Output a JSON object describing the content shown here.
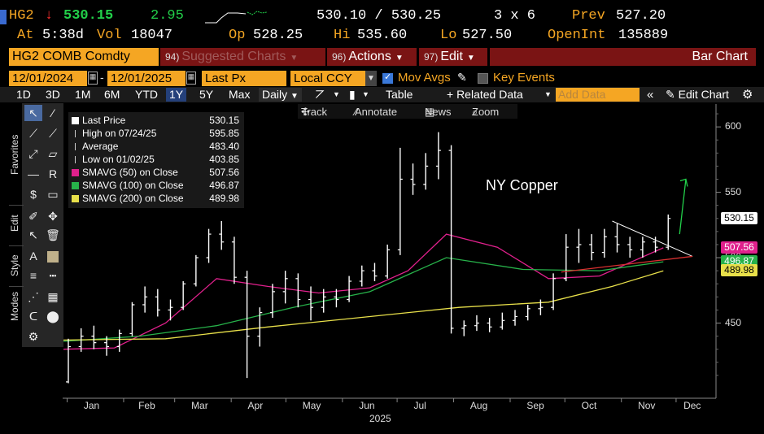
{
  "quote": {
    "ticker": "HG2",
    "direction_arrow": "↓",
    "last": "530.15",
    "change": "2.95",
    "bid_ask": "530.10 / 530.25",
    "size": "3 x 6",
    "prev_label": "Prev",
    "prev": "527.20",
    "at_label": "At",
    "at_time": "5:38d",
    "vol_label": "Vol",
    "vol": "18047",
    "op_label": "Op",
    "op": "528.25",
    "hi_label": "Hi",
    "hi": "535.60",
    "lo_label": "Lo",
    "lo": "527.50",
    "openint_label": "OpenInt",
    "openint": "135889"
  },
  "menu": {
    "security": "HG2 COMB Comdty",
    "suggested_num": "94)",
    "suggested_label": "Suggested Charts",
    "actions_num": "96)",
    "actions_label": "Actions",
    "edit_num": "97)",
    "edit_label": "Edit",
    "chart_type": "Bar Chart"
  },
  "params": {
    "start_date": "12/01/2024",
    "end_date": "12/01/2025",
    "field": "Last Px",
    "currency": "Local CCY",
    "mov_avgs_label": "Mov Avgs",
    "mov_avgs_checked": true,
    "key_events_label": "Key Events",
    "key_events_checked": false
  },
  "periods": [
    "1D",
    "3D",
    "1M",
    "6M",
    "YTD",
    "1Y",
    "5Y",
    "Max"
  ],
  "active_period": "1Y",
  "toolbar2": {
    "frequency": "Daily",
    "table_label": "Table",
    "related_label": "+ Related Data",
    "add_data_placeholder": "Add Data",
    "edit_chart_label": "Edit Chart"
  },
  "chart_tools": {
    "track": "Track",
    "annotate": "Annotate",
    "news": "News",
    "zoom": "Zoom"
  },
  "side_tabs": {
    "favorites": "Favorites",
    "edit": "Edit",
    "style": "Style",
    "modes": "Modes"
  },
  "legend": [
    {
      "label": "Last Price",
      "value": "530.15",
      "color": "#ffffff"
    },
    {
      "label": "High on 07/24/25",
      "value": "595.85",
      "color": "#cccccc"
    },
    {
      "label": "Average",
      "value": "483.40",
      "color": "#cccccc"
    },
    {
      "label": "Low on 01/02/25",
      "value": "403.85",
      "color": "#cccccc"
    },
    {
      "label": "SMAVG (50)  on Close",
      "value": "507.56",
      "color": "#e0208c"
    },
    {
      "label": "SMAVG (100)  on Close",
      "value": "496.87",
      "color": "#27b24a"
    },
    {
      "label": "SMAVG (200)  on Close",
      "value": "489.98",
      "color": "#e8e04a"
    }
  ],
  "annotation": "NY Copper",
  "colors": {
    "amber": "#f5a623",
    "menu_red": "#7a1414",
    "sma50": "#e0208c",
    "sma100": "#27b24a",
    "sma200": "#e8e04a",
    "trend_line": "#d83030",
    "arrow": "#22d04a"
  },
  "chart_data": {
    "type": "bar",
    "title": "",
    "annotation": "NY Copper",
    "xlabel": "2025",
    "x_ticks": [
      "Jan",
      "Feb",
      "Mar",
      "Apr",
      "May",
      "Jun",
      "Jul",
      "Aug",
      "Sep",
      "Oct",
      "Nov",
      "Dec"
    ],
    "y_ticks": [
      450,
      500,
      550,
      600
    ],
    "ylim": [
      395,
      615
    ],
    "grid": false,
    "last_price_tag": "530.15",
    "sma_tags": [
      "507.56",
      "496.87",
      "489.98"
    ],
    "price_weeks": [
      {
        "w": "2024-12-30",
        "o": 405,
        "h": 438,
        "l": 404,
        "c": 432
      },
      {
        "w": "2025-01-06",
        "o": 432,
        "h": 446,
        "l": 428,
        "c": 440
      },
      {
        "w": "2025-01-13",
        "o": 440,
        "h": 448,
        "l": 430,
        "c": 435
      },
      {
        "w": "2025-01-20",
        "o": 435,
        "h": 440,
        "l": 425,
        "c": 432
      },
      {
        "w": "2025-01-27",
        "o": 432,
        "h": 445,
        "l": 428,
        "c": 442
      },
      {
        "w": "2025-02-03",
        "o": 442,
        "h": 466,
        "l": 440,
        "c": 464
      },
      {
        "w": "2025-02-10",
        "o": 464,
        "h": 478,
        "l": 458,
        "c": 470
      },
      {
        "w": "2025-02-17",
        "o": 470,
        "h": 476,
        "l": 455,
        "c": 460
      },
      {
        "w": "2025-02-24",
        "o": 460,
        "h": 468,
        "l": 452,
        "c": 462
      },
      {
        "w": "2025-03-03",
        "o": 462,
        "h": 482,
        "l": 460,
        "c": 480
      },
      {
        "w": "2025-03-10",
        "o": 480,
        "h": 502,
        "l": 478,
        "c": 500
      },
      {
        "w": "2025-03-17",
        "o": 500,
        "h": 522,
        "l": 496,
        "c": 518
      },
      {
        "w": "2025-03-24",
        "o": 518,
        "h": 528,
        "l": 506,
        "c": 512
      },
      {
        "w": "2025-03-31",
        "o": 512,
        "h": 516,
        "l": 480,
        "c": 485
      },
      {
        "w": "2025-04-07",
        "o": 485,
        "h": 490,
        "l": 408,
        "c": 440
      },
      {
        "w": "2025-04-14",
        "o": 440,
        "h": 462,
        "l": 432,
        "c": 458
      },
      {
        "w": "2025-04-21",
        "o": 458,
        "h": 480,
        "l": 454,
        "c": 474
      },
      {
        "w": "2025-04-28",
        "o": 474,
        "h": 490,
        "l": 465,
        "c": 484
      },
      {
        "w": "2025-05-05",
        "o": 484,
        "h": 488,
        "l": 462,
        "c": 468
      },
      {
        "w": "2025-05-12",
        "o": 468,
        "h": 478,
        "l": 452,
        "c": 462
      },
      {
        "w": "2025-05-19",
        "o": 462,
        "h": 476,
        "l": 458,
        "c": 470
      },
      {
        "w": "2025-05-26",
        "o": 470,
        "h": 476,
        "l": 462,
        "c": 468
      },
      {
        "w": "2025-06-02",
        "o": 468,
        "h": 486,
        "l": 466,
        "c": 482
      },
      {
        "w": "2025-06-09",
        "o": 482,
        "h": 494,
        "l": 478,
        "c": 490
      },
      {
        "w": "2025-06-16",
        "o": 490,
        "h": 496,
        "l": 482,
        "c": 486
      },
      {
        "w": "2025-06-23",
        "o": 486,
        "h": 510,
        "l": 484,
        "c": 506
      },
      {
        "w": "2025-06-30",
        "o": 506,
        "h": 584,
        "l": 502,
        "c": 560
      },
      {
        "w": "2025-07-07",
        "o": 560,
        "h": 572,
        "l": 548,
        "c": 556
      },
      {
        "w": "2025-07-14",
        "o": 556,
        "h": 580,
        "l": 552,
        "c": 570
      },
      {
        "w": "2025-07-21",
        "o": 570,
        "h": 596,
        "l": 560,
        "c": 582
      },
      {
        "w": "2025-07-28",
        "o": 582,
        "h": 586,
        "l": 442,
        "c": 446
      },
      {
        "w": "2025-08-04",
        "o": 446,
        "h": 452,
        "l": 440,
        "c": 448
      },
      {
        "w": "2025-08-11",
        "o": 448,
        "h": 456,
        "l": 444,
        "c": 450
      },
      {
        "w": "2025-08-18",
        "o": 450,
        "h": 454,
        "l": 443,
        "c": 447
      },
      {
        "w": "2025-08-25",
        "o": 447,
        "h": 458,
        "l": 445,
        "c": 452
      },
      {
        "w": "2025-09-01",
        "o": 452,
        "h": 460,
        "l": 448,
        "c": 455
      },
      {
        "w": "2025-09-08",
        "o": 455,
        "h": 464,
        "l": 452,
        "c": 461
      },
      {
        "w": "2025-09-15",
        "o": 461,
        "h": 468,
        "l": 456,
        "c": 462
      },
      {
        "w": "2025-09-22",
        "o": 462,
        "h": 488,
        "l": 460,
        "c": 484
      },
      {
        "w": "2025-09-29",
        "o": 484,
        "h": 518,
        "l": 482,
        "c": 508
      },
      {
        "w": "2025-10-06",
        "o": 508,
        "h": 522,
        "l": 496,
        "c": 510
      },
      {
        "w": "2025-10-13",
        "o": 510,
        "h": 518,
        "l": 498,
        "c": 504
      },
      {
        "w": "2025-10-20",
        "o": 504,
        "h": 522,
        "l": 500,
        "c": 516
      },
      {
        "w": "2025-10-27",
        "o": 516,
        "h": 526,
        "l": 504,
        "c": 510
      },
      {
        "w": "2025-11-03",
        "o": 510,
        "h": 516,
        "l": 500,
        "c": 506
      },
      {
        "w": "2025-11-10",
        "o": 506,
        "h": 516,
        "l": 500,
        "c": 512
      },
      {
        "w": "2025-11-17",
        "o": 512,
        "h": 516,
        "l": 504,
        "c": 508
      },
      {
        "w": "2025-11-24",
        "o": 508,
        "h": 533,
        "l": 506,
        "c": 530
      }
    ],
    "series": [
      {
        "name": "SMAVG (50)  on Close",
        "points": [
          {
            "x": "2024-12-30",
            "y": 430
          },
          {
            "x": "2025-01-27",
            "y": 431
          },
          {
            "x": "2025-02-24",
            "y": 450
          },
          {
            "x": "2025-03-24",
            "y": 484
          },
          {
            "x": "2025-04-21",
            "y": 478
          },
          {
            "x": "2025-05-19",
            "y": 473
          },
          {
            "x": "2025-06-16",
            "y": 477
          },
          {
            "x": "2025-07-07",
            "y": 490
          },
          {
            "x": "2025-07-28",
            "y": 518
          },
          {
            "x": "2025-08-25",
            "y": 508
          },
          {
            "x": "2025-09-22",
            "y": 484
          },
          {
            "x": "2025-10-20",
            "y": 486
          },
          {
            "x": "2025-11-24",
            "y": 507.56
          }
        ]
      },
      {
        "name": "SMAVG (100)  on Close",
        "points": [
          {
            "x": "2024-12-30",
            "y": 436
          },
          {
            "x": "2025-02-10",
            "y": 440
          },
          {
            "x": "2025-03-24",
            "y": 448
          },
          {
            "x": "2025-05-05",
            "y": 462
          },
          {
            "x": "2025-06-16",
            "y": 474
          },
          {
            "x": "2025-07-28",
            "y": 500
          },
          {
            "x": "2025-09-08",
            "y": 491
          },
          {
            "x": "2025-10-20",
            "y": 490
          },
          {
            "x": "2025-11-24",
            "y": 496.87
          }
        ]
      },
      {
        "name": "SMAVG (200)  on Close",
        "points": [
          {
            "x": "2024-12-30",
            "y": 437
          },
          {
            "x": "2025-02-24",
            "y": 438
          },
          {
            "x": "2025-04-21",
            "y": 447
          },
          {
            "x": "2025-06-16",
            "y": 455
          },
          {
            "x": "2025-08-04",
            "y": 462
          },
          {
            "x": "2025-09-22",
            "y": 466
          },
          {
            "x": "2025-10-27",
            "y": 478
          },
          {
            "x": "2025-11-24",
            "y": 489.98
          }
        ]
      }
    ]
  }
}
